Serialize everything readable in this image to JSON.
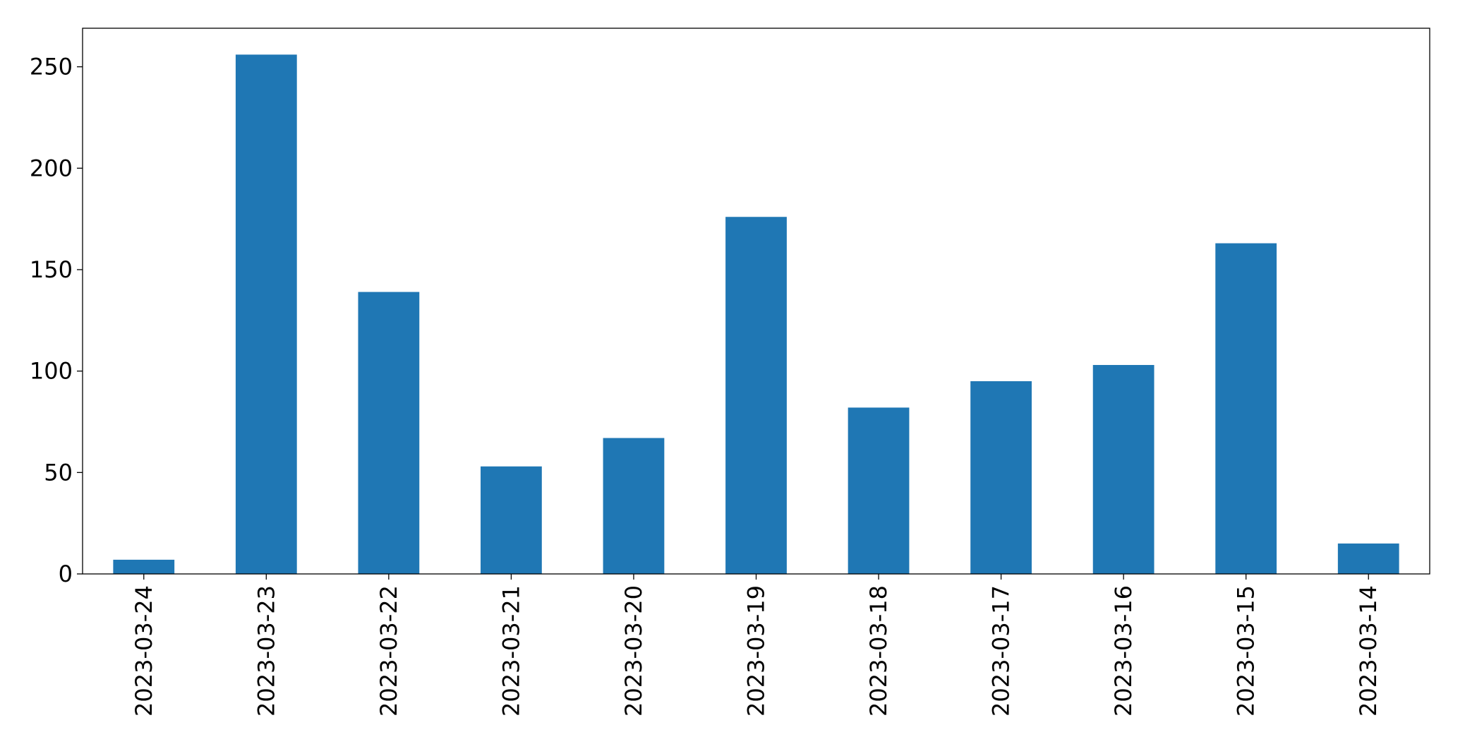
{
  "chart_data": {
    "type": "bar",
    "categories": [
      "2023-03-24",
      "2023-03-23",
      "2023-03-22",
      "2023-03-21",
      "2023-03-20",
      "2023-03-19",
      "2023-03-18",
      "2023-03-17",
      "2023-03-16",
      "2023-03-15",
      "2023-03-14"
    ],
    "values": [
      7,
      256,
      139,
      53,
      67,
      176,
      82,
      95,
      103,
      163,
      15
    ],
    "color": "#1f77b4",
    "ylim": [
      0,
      269
    ],
    "yticks": [
      0,
      50,
      100,
      150,
      200,
      250
    ],
    "grid": false
  }
}
